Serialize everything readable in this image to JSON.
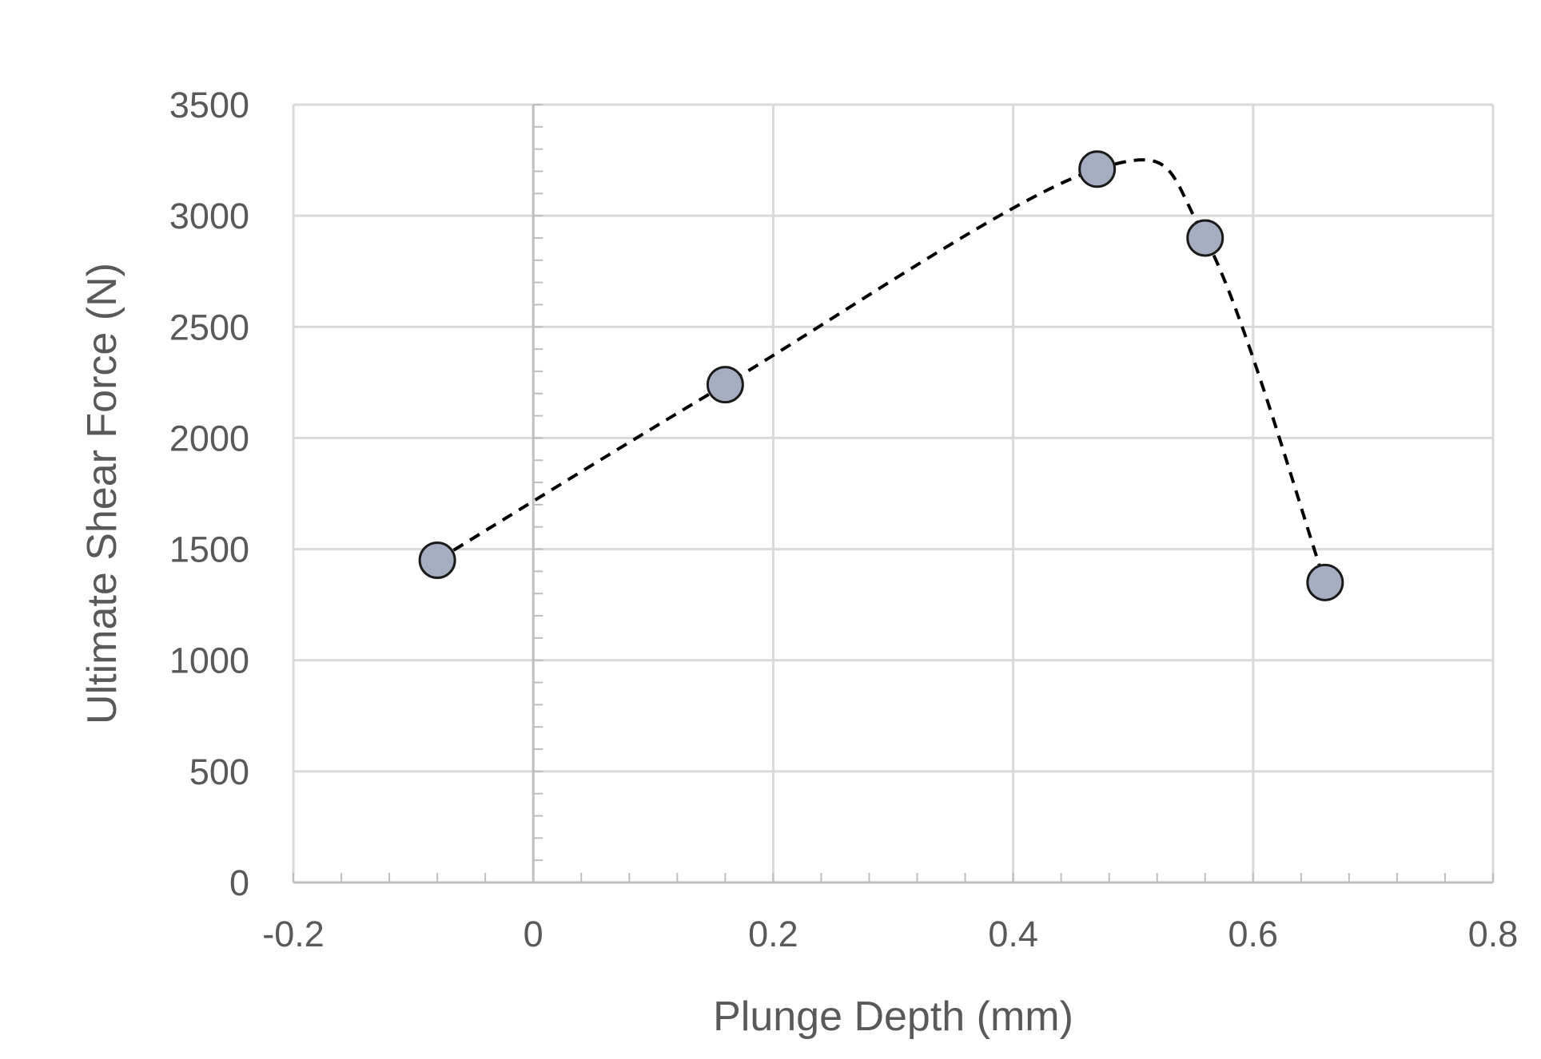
{
  "chart_data": {
    "type": "scatter",
    "xlabel": "Plunge Depth (mm)",
    "ylabel": "Ultimate Shear Force (N)",
    "xlim": [
      -0.2,
      0.8
    ],
    "ylim": [
      0,
      3500
    ],
    "x_ticks": [
      "-0.2",
      "0",
      "0.2",
      "0.4",
      "0.6",
      "0.8"
    ],
    "y_ticks": [
      "0",
      "500",
      "1000",
      "1500",
      "2000",
      "2500",
      "3000",
      "3500"
    ],
    "grid": true,
    "legend": "none",
    "marker_color": "#a5aec0",
    "line_style": "dashed",
    "series": [
      {
        "x": [
          -0.08,
          0.16,
          0.47,
          0.56,
          0.66
        ],
        "y": [
          1450,
          2240,
          3210,
          2900,
          1350
        ]
      }
    ]
  }
}
